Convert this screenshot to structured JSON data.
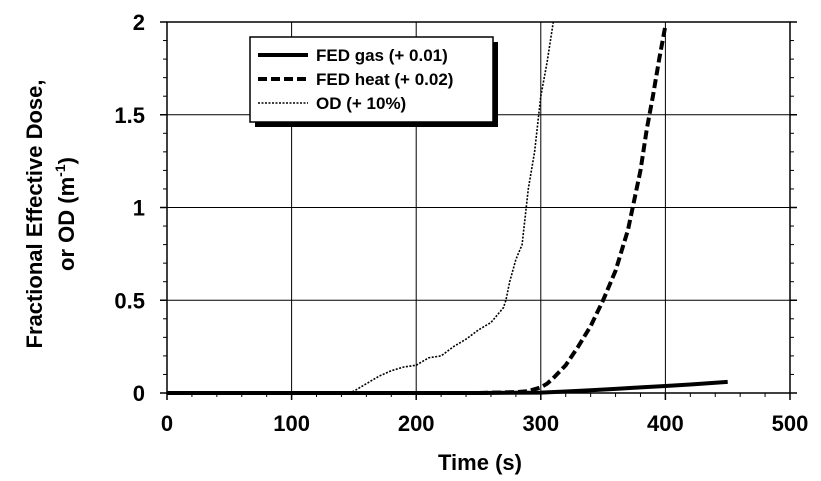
{
  "chart_data": {
    "type": "line",
    "xlabel": "Time (s)",
    "ylabel": {
      "line1": "Fractional Effective Dose,",
      "line2_prefix": "or OD (m",
      "line2_sup": "-1",
      "line2_suffix": ")"
    },
    "xlim": [
      0,
      500
    ],
    "ylim": [
      0,
      2
    ],
    "x_ticks": [
      "0",
      "100",
      "200",
      "300",
      "400",
      "500"
    ],
    "y_ticks": [
      "0",
      "0.5",
      "1",
      "1.5",
      "2"
    ],
    "grid": true,
    "legend_position": "top-center",
    "series": [
      {
        "name": "FED gas (+ 0.01)",
        "style": "solid",
        "color": "#000000",
        "x": [
          0,
          100,
          200,
          250,
          300,
          320,
          340,
          360,
          380,
          400,
          420,
          450
        ],
        "y": [
          0,
          0,
          0,
          0,
          0.002,
          0.008,
          0.015,
          0.022,
          0.03,
          0.038,
          0.046,
          0.06
        ]
      },
      {
        "name": "FED heat (+ 0.02)",
        "style": "dashed",
        "color": "#000000",
        "x": [
          0,
          100,
          200,
          250,
          280,
          290,
          300,
          305,
          310,
          320,
          330,
          340,
          350,
          360,
          370,
          380,
          385,
          390,
          395,
          400
        ],
        "y": [
          0,
          0,
          0,
          0,
          0.005,
          0.01,
          0.03,
          0.05,
          0.08,
          0.15,
          0.25,
          0.36,
          0.5,
          0.66,
          0.88,
          1.2,
          1.42,
          1.6,
          1.8,
          1.98
        ]
      },
      {
        "name": "OD (+ 10%)",
        "style": "dotted",
        "color": "#000000",
        "x": [
          0,
          100,
          145,
          150,
          160,
          170,
          180,
          190,
          200,
          210,
          220,
          230,
          240,
          250,
          255,
          260,
          265,
          270,
          272,
          275,
          280,
          285,
          290,
          295,
          300,
          305,
          310
        ],
        "y": [
          0,
          0,
          0,
          0.01,
          0.05,
          0.09,
          0.12,
          0.14,
          0.15,
          0.19,
          0.2,
          0.25,
          0.29,
          0.34,
          0.36,
          0.38,
          0.42,
          0.46,
          0.5,
          0.6,
          0.72,
          0.8,
          1.1,
          1.3,
          1.6,
          1.78,
          2.0
        ]
      }
    ]
  }
}
